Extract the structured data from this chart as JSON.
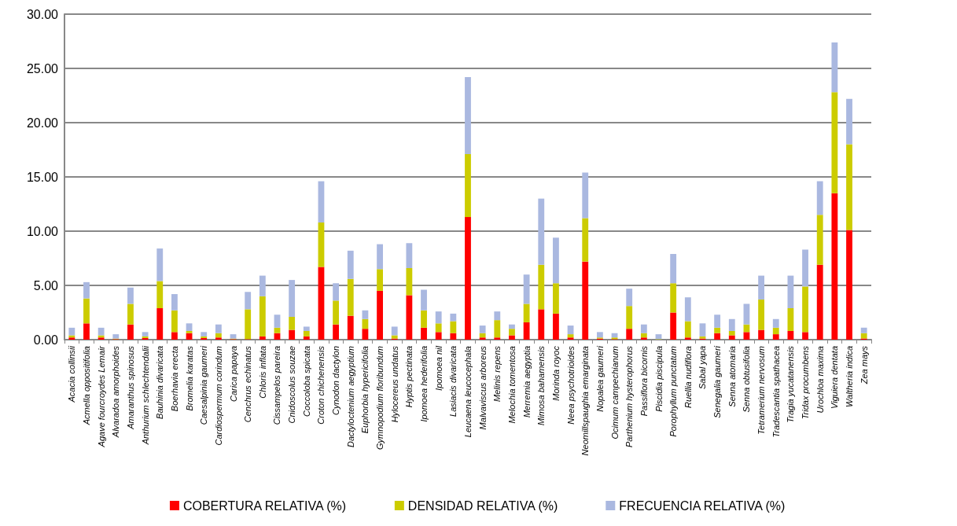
{
  "chart_data": {
    "type": "bar",
    "stacked": true,
    "grid": "y",
    "legend": "bottom",
    "categories": [
      "Acacia collinsii",
      "Acmella oppositifolia",
      "Agave fourcroydes Lemair",
      "Alvaradoa amorphoides",
      "Amaranthus spinosus",
      "Anthurium schlechtendalii",
      "Bauhinia divaricata",
      "Boerhavia erecta",
      "Bromelia karatas",
      "Caesalpinia gaumeri",
      "Cardiospermum corindum",
      "Carica papaya",
      "Cenchrus echinatus",
      "Chloris inflata",
      "Cissampelos pareira",
      "Cnidoscolus souzae",
      "Coccoloba spicata",
      "Croton chichenensis",
      "Cynodon dactylon",
      "Dactyloctenium aegyptium",
      "Euphorbia hypericifolia",
      "Gymnopodium floribundum",
      "Hylocereus undatus",
      "Hyptis pectinata",
      "Ipomoea hederifolia",
      "Ipomoea nil",
      "Lasiacis divaricata",
      "Leucaena leucocephala",
      "Malvaviscus arboreus",
      "Melinis repens",
      "Melochia tomentosa",
      "Merremia aegyptia",
      "Mimosa bahamensis",
      "Morinda royoc",
      "Neea psychotrioides",
      "Neomillspaughia emarginata",
      "Nopalea gaumeri",
      "Ocimum campechianum",
      "Parthenium hysterophorus",
      "Passiflora bicornis",
      "Piscidia piscipula",
      "Porophyllum punctatum",
      "Ruellia nudiflora",
      "Sabal yapa",
      "Senegalia gaumeri",
      "Senna atomaria",
      "Senna obtusifolia",
      "Tetramerium nervosum",
      "Tradescantia spathacea",
      "Tragia yucatanensis",
      "Tridax procumbens",
      "Urochloa maxima",
      "Viguiera dentata",
      "Waltheria indica",
      "Zea mays"
    ],
    "series": [
      {
        "name": "COBERTURA RELATIVA (%)",
        "color": "#ff0000",
        "values": [
          0.2,
          1.5,
          0.2,
          0.05,
          1.4,
          0.15,
          2.9,
          0.7,
          0.6,
          0.15,
          0.2,
          0.05,
          0.05,
          0.3,
          0.6,
          0.9,
          0.3,
          6.7,
          1.4,
          2.2,
          1.0,
          4.5,
          0.1,
          4.1,
          1.1,
          0.7,
          0.6,
          11.3,
          0.2,
          0.2,
          0.4,
          1.6,
          2.8,
          2.4,
          0.2,
          7.2,
          0.1,
          0.05,
          1.0,
          0.2,
          0.0,
          2.5,
          0.2,
          0.1,
          0.6,
          0.4,
          0.7,
          0.9,
          0.5,
          0.8,
          0.7,
          6.9,
          13.5,
          10.1,
          0.1
        ]
      },
      {
        "name": "DENSIDAD RELATIVA (%)",
        "color": "#cccc00",
        "values": [
          0.2,
          2.3,
          0.2,
          0.05,
          1.9,
          0.15,
          2.5,
          2.0,
          0.2,
          0.15,
          0.4,
          0.05,
          2.75,
          3.7,
          0.5,
          1.2,
          0.5,
          4.1,
          2.2,
          3.4,
          0.9,
          2.0,
          0.3,
          2.5,
          1.6,
          0.8,
          1.1,
          5.8,
          0.4,
          1.6,
          0.6,
          1.7,
          4.1,
          2.8,
          0.3,
          4.0,
          0.1,
          0.15,
          2.1,
          0.4,
          0.05,
          2.7,
          1.5,
          0.2,
          0.5,
          0.4,
          0.7,
          2.8,
          0.6,
          2.1,
          4.2,
          4.6,
          9.3,
          7.9,
          0.5
        ]
      },
      {
        "name": "FRECUENCIA RELATIVA (%)",
        "color": "#aab8e0",
        "values": [
          0.7,
          1.5,
          0.7,
          0.4,
          1.5,
          0.4,
          3.0,
          1.5,
          0.7,
          0.4,
          0.8,
          0.4,
          1.6,
          1.9,
          1.2,
          3.4,
          0.4,
          3.8,
          1.6,
          2.6,
          0.8,
          2.3,
          0.8,
          2.3,
          1.9,
          1.1,
          0.7,
          7.1,
          0.7,
          0.8,
          0.4,
          2.7,
          6.1,
          4.2,
          0.8,
          4.2,
          0.5,
          0.4,
          1.6,
          0.8,
          0.45,
          2.7,
          2.2,
          1.2,
          1.2,
          1.1,
          1.9,
          2.2,
          0.8,
          3.0,
          3.4,
          3.1,
          4.6,
          4.2,
          0.5
        ]
      }
    ],
    "ylim": [
      0,
      30
    ],
    "yticks": [
      {
        "value": 0,
        "label": "0.00"
      },
      {
        "value": 5,
        "label": "5.00"
      },
      {
        "value": 10,
        "label": "10.00"
      },
      {
        "value": 15,
        "label": "15.00"
      },
      {
        "value": 20,
        "label": "20.00"
      },
      {
        "value": 25,
        "label": "25.00"
      },
      {
        "value": 30,
        "label": "30.00"
      }
    ]
  }
}
